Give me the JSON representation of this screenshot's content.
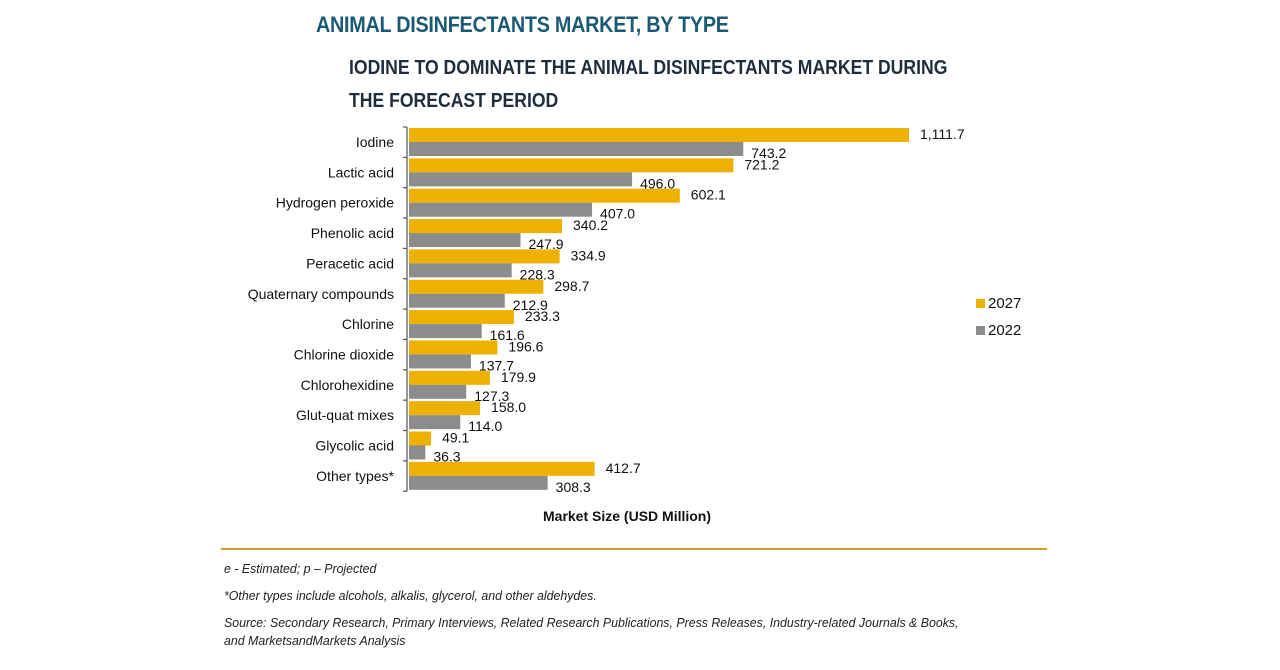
{
  "header": {
    "title": "ANIMAL DISINFECTANTS MARKET, BY TYPE",
    "subtitle_line1": "IODINE TO DOMINATE THE ANIMAL DISINFECTANTS MARKET DURING",
    "subtitle_line2": "THE FORECAST PERIOD"
  },
  "chart_data": {
    "type": "bar",
    "orientation": "horizontal",
    "title": "ANIMAL DISINFECTANTS MARKET, BY TYPE",
    "subtitle": "IODINE TO DOMINATE THE ANIMAL DISINFECTANTS MARKET DURING THE FORECAST PERIOD",
    "xlabel": "Market Size (USD Million)",
    "ylabel": "",
    "xlim": [
      0,
      1111.7
    ],
    "grid": false,
    "legend_position": "right",
    "categories": [
      "Iodine",
      "Lactic acid",
      "Hydrogen peroxide",
      "Phenolic acid",
      "Peracetic acid",
      "Quaternary compounds",
      "Chlorine",
      "Chlorine dioxide",
      "Chlorohexidine",
      "Glut-quat mixes",
      "Glycolic acid",
      "Other types*"
    ],
    "series": [
      {
        "name": "2027",
        "color": "#EDB100",
        "values": [
          1111.7,
          721.2,
          602.1,
          340.2,
          334.9,
          298.7,
          233.3,
          196.6,
          179.9,
          158.0,
          49.1,
          412.7
        ],
        "labels": [
          "1,111.7",
          "721.2",
          "602.1",
          "340.2",
          "334.9",
          "298.7",
          "233.3",
          "196.6",
          "179.9",
          "158.0",
          "49.1",
          "412.7"
        ]
      },
      {
        "name": "2022",
        "color": "#8C8C8C",
        "values": [
          743.2,
          496.0,
          407.0,
          247.9,
          228.3,
          212.9,
          161.6,
          137.7,
          127.3,
          114.0,
          36.3,
          308.3
        ],
        "labels": [
          "743.2",
          "496.0",
          "407.0",
          "247.9",
          "228.3",
          "212.9",
          "161.6",
          "137.7",
          "127.3",
          "114.0",
          "36.3",
          "308.3"
        ]
      }
    ]
  },
  "legend": {
    "items": [
      {
        "label": "2027",
        "color": "#EDB100"
      },
      {
        "label": "2022",
        "color": "#8C8C8C"
      }
    ]
  },
  "footnotes": {
    "estimated": "e - Estimated; p – Projected",
    "other_types": "*Other types include alcohols, alkalis, glycerol, and other aldehydes.",
    "source_line1": "Source: Secondary Research, Primary Interviews, Related Research Publications, Press Releases, Industry-related Journals & Books,",
    "source_line2": "and MarketsandMarkets Analysis"
  }
}
